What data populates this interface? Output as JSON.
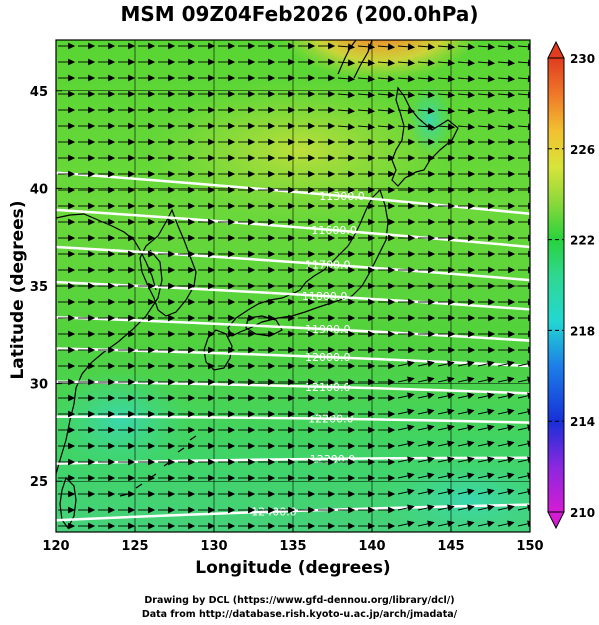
{
  "title": "MSM 09Z04Feb2026 (200.0hPa)",
  "xlabel": "Longitude (degrees)",
  "ylabel": "Latitude  (degrees)",
  "credits": {
    "line1": "Drawing by DCL (https://www.gfd-dennou.org/library/dcl/)",
    "line2": "Data from http://database.rish.kyoto-u.ac.jp/arch/jmadata/"
  },
  "chart_data": {
    "type": "map",
    "x_ticks": [
      "120",
      "125",
      "130",
      "135",
      "140",
      "145",
      "150"
    ],
    "y_ticks": [
      "25",
      "30",
      "35",
      "40",
      "45"
    ],
    "xlim": [
      120,
      150
    ],
    "ylim": [
      22.4,
      47.6
    ],
    "colorbar": {
      "ticks": [
        "210",
        "214",
        "218",
        "222",
        "226",
        "230"
      ],
      "range": [
        210,
        230
      ]
    },
    "height_contours": [
      {
        "label": "11300.0",
        "lat_west": 40.8,
        "lat_east": 38.7,
        "label_lon": 138.1
      },
      {
        "label": "11600.0",
        "lat_west": 38.9,
        "lat_east": 37.0,
        "label_lon": 137.6
      },
      {
        "label": "11700.0",
        "lat_west": 37.0,
        "lat_east": 35.3,
        "label_lon": 137.2
      },
      {
        "label": "11800.0",
        "lat_west": 35.2,
        "lat_east": 33.8,
        "label_lon": 137.0
      },
      {
        "label": "11900.0",
        "lat_west": 33.4,
        "lat_east": 32.2,
        "label_lon": 137.2
      },
      {
        "label": "12000.0",
        "lat_west": 31.8,
        "lat_east": 30.9,
        "label_lon": 137.2
      },
      {
        "label": "12100.0",
        "lat_west": 30.1,
        "lat_east": 29.5,
        "label_lon": 137.2
      },
      {
        "label": "12200.0",
        "lat_west": 28.3,
        "lat_east": 28.0,
        "label_lon": 137.4
      },
      {
        "label": "12300.0",
        "lat_west": 25.9,
        "lat_east": 26.2,
        "label_lon": 137.5
      },
      {
        "label": "12400.0",
        "lat_west": 23.0,
        "lat_east": 23.8,
        "label_lon": 133.8
      }
    ],
    "temperature_field": "mostly 221-223 K (green), warm max near 226-230 K at 138-141E, 46-48N; cooler 219-221 K in the south",
    "wind_field": "westerly wind vectors, slight northeastward tilt in southeast corner"
  }
}
